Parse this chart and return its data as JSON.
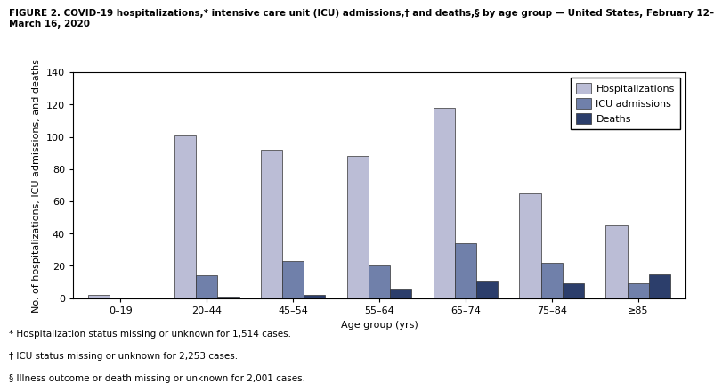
{
  "title_line1": "FIGURE 2. COVID-19 hospitalizations,* intensive care unit (ICU) admissions,† and deaths,§ by age group — United States, February 12–",
  "title_line2": "March 16, 2020",
  "xlabel": "Age group (yrs)",
  "ylabel": "No. of hospitalizations, ICU admissions, and deaths",
  "age_groups": [
    "0–19",
    "20–44",
    "45–54",
    "55–64",
    "65–74",
    "75–84",
    "≥85"
  ],
  "hospitalizations": [
    2,
    101,
    92,
    88,
    118,
    65,
    45
  ],
  "icu_admissions": [
    0,
    14,
    23,
    20,
    34,
    22,
    9
  ],
  "deaths": [
    0,
    1,
    2,
    6,
    11,
    9,
    15
  ],
  "hosp_color": "#bbbdd6",
  "icu_color": "#7080aa",
  "death_color": "#2c3e6b",
  "bar_edge_color": "#333333",
  "ylim": [
    0,
    140
  ],
  "yticks": [
    0,
    20,
    40,
    60,
    80,
    100,
    120,
    140
  ],
  "legend_labels": [
    "Hospitalizations",
    "ICU admissions",
    "Deaths"
  ],
  "footnotes": [
    "* Hospitalization status missing or unknown for 1,514 cases.",
    "† ICU status missing or unknown for 2,253 cases.",
    "§ Illness outcome or death missing or unknown for 2,001 cases."
  ],
  "bar_width": 0.25,
  "bg_color": "#ffffff",
  "title_fontsize": 7.5,
  "axis_fontsize": 8,
  "tick_fontsize": 8,
  "legend_fontsize": 8,
  "footnote_fontsize": 7.5
}
